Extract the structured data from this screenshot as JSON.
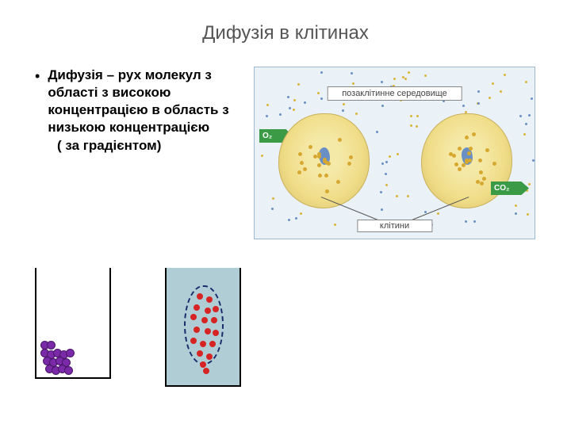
{
  "title": "Дифузія в клітинах",
  "definition_strong": "Дифузія – рух молекул з області з високою концентрацією в область з низькою концентрацією",
  "definition_sub": "( за градієнтом)",
  "cell_diagram": {
    "env_label": "позаклітинне середовище",
    "cells_label": "клітини",
    "arrow_in": "O₂",
    "arrow_out": "CO₂",
    "bg_color": "#eaf2f8",
    "cell_fill": "#f0dd88",
    "arrow_color": "#3a9a46",
    "env_dot_colors": [
      "#6a8fc4",
      "#d9b43a"
    ]
  },
  "beakers": {
    "left": {
      "type": "clustered",
      "dot_color": "#7a2aa8",
      "background": "#ffffff",
      "dot_count": 15
    },
    "right": {
      "type": "diffusing",
      "dot_color": "#d62424",
      "background": "#b0cdd6",
      "membrane_border": "#1a2a6a",
      "dot_count": 18
    }
  }
}
